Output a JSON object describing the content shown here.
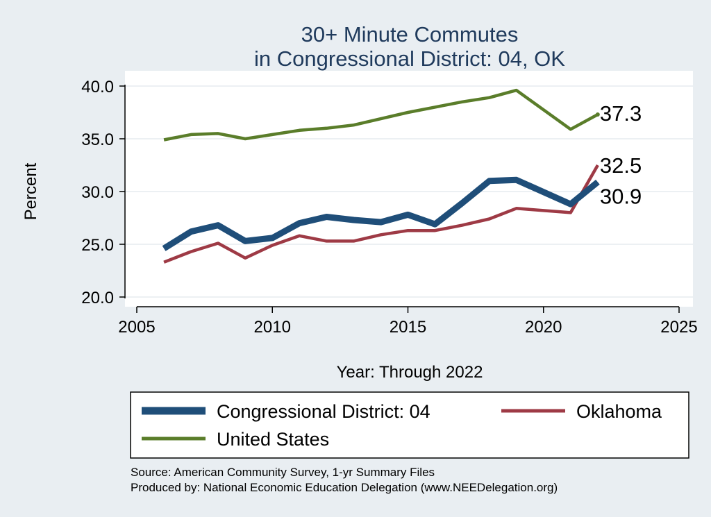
{
  "chart_data": {
    "type": "line",
    "title": [
      "30+ Minute Commutes",
      "in Congressional District:  04, OK"
    ],
    "xlabel": "Year: Through 2022",
    "ylabel": "Percent",
    "xlim": [
      2005,
      2025
    ],
    "ylim": [
      20,
      40
    ],
    "xticks": [
      2005,
      2010,
      2015,
      2020,
      2025
    ],
    "yticks": [
      20,
      25,
      30,
      35,
      40
    ],
    "ytick_labels": [
      "20.0",
      "25.0",
      "30.0",
      "35.0",
      "40.0"
    ],
    "grid": "horizontal",
    "series": [
      {
        "name": "Congressional District:  04",
        "color": "#1f4e79",
        "line": "thick",
        "x": [
          2006,
          2007,
          2008,
          2009,
          2010,
          2011,
          2012,
          2013,
          2014,
          2015,
          2016,
          2017,
          2018,
          2019,
          2021,
          2022
        ],
        "values": [
          24.6,
          26.2,
          26.8,
          25.3,
          25.6,
          27.0,
          27.6,
          27.3,
          27.1,
          27.8,
          26.9,
          28.9,
          31.0,
          31.1,
          28.8,
          30.9
        ],
        "end_label": "30.9"
      },
      {
        "name": "Oklahoma",
        "color": "#9e3a45",
        "line": "medium",
        "x": [
          2006,
          2007,
          2008,
          2009,
          2010,
          2011,
          2012,
          2013,
          2014,
          2015,
          2016,
          2017,
          2018,
          2019,
          2021,
          2022
        ],
        "values": [
          23.3,
          24.3,
          25.1,
          23.7,
          24.9,
          25.8,
          25.3,
          25.3,
          25.9,
          26.3,
          26.3,
          26.8,
          27.4,
          28.4,
          28.0,
          32.5
        ],
        "end_label": "32.5"
      },
      {
        "name": "United States",
        "color": "#5a7d2a",
        "line": "medium",
        "x": [
          2006,
          2007,
          2008,
          2009,
          2010,
          2011,
          2012,
          2013,
          2014,
          2015,
          2016,
          2017,
          2018,
          2019,
          2021,
          2022
        ],
        "values": [
          34.9,
          35.4,
          35.5,
          35.0,
          35.4,
          35.8,
          36.0,
          36.3,
          36.9,
          37.5,
          38.0,
          38.5,
          38.9,
          39.6,
          35.9,
          37.3
        ],
        "end_label": "37.3"
      }
    ],
    "legend": {
      "position": "bottom",
      "entries": [
        "Congressional District:  04",
        "Oklahoma",
        "United States"
      ]
    },
    "source_lines": [
      "Source: American Community Survey, 1-yr Summary Files",
      "Produced by: National Economic Education Delegation (www.NEEDelegation.org)"
    ]
  }
}
